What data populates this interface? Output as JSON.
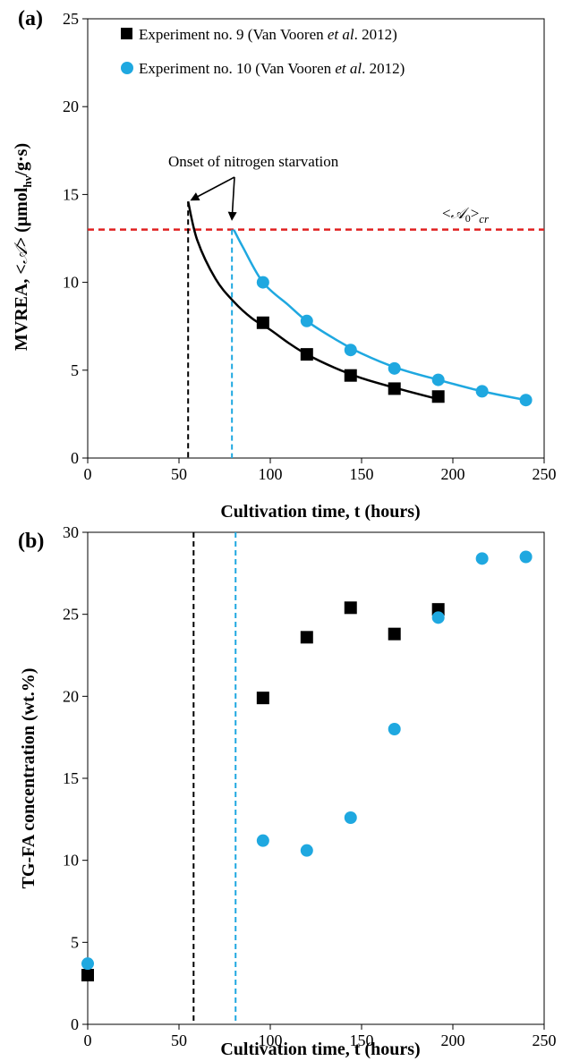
{
  "chart_data": [
    {
      "type": "scatter",
      "panel_label": "(a)",
      "xlabel": "Cultivation time, t (hours)",
      "ylabel_parts": [
        "MVREA, <",
        "𝒜",
        "> (μmol",
        "hν",
        "/g·s)"
      ],
      "xlim": [
        0,
        250
      ],
      "ylim": [
        0,
        25
      ],
      "xticks": [
        0,
        50,
        100,
        150,
        200,
        250
      ],
      "yticks": [
        0,
        5,
        10,
        15,
        20,
        25
      ],
      "grid": false,
      "legend_position": "top",
      "series": [
        {
          "name": "Experiment no. 9 (Van Vooren et al. 2012)",
          "name_parts": [
            "Experiment no. 9 (Van Vooren ",
            "et al",
            ". 2012)"
          ],
          "marker": "square",
          "color": "#000000",
          "x": [
            96,
            120,
            144,
            168,
            192
          ],
          "y": [
            7.7,
            5.9,
            4.7,
            3.95,
            3.5
          ],
          "fit_curve": {
            "x": [
              55,
              60,
              70,
              80,
              90,
              100,
              110,
              120,
              135,
              150,
              170,
              192
            ],
            "y": [
              14.6,
              12.4,
              10.2,
              8.9,
              7.95,
              7.3,
              6.55,
              5.9,
              5.15,
              4.55,
              3.95,
              3.35
            ]
          }
        },
        {
          "name": "Experiment no. 10 (Van Vooren et al. 2012)",
          "name_parts": [
            "Experiment no. 10  (Van Vooren ",
            "et al",
            ". 2012)"
          ],
          "marker": "circle",
          "color": "#1fa8e0",
          "x": [
            96,
            120,
            144,
            168,
            192,
            216,
            240
          ],
          "y": [
            10.0,
            7.8,
            6.15,
            5.1,
            4.45,
            3.8,
            3.3
          ],
          "fit_curve": {
            "x": [
              80,
              85,
              96,
              110,
              120,
              135,
              150,
              170,
              192,
              216,
              240
            ],
            "y": [
              13.0,
              12.0,
              10.0,
              8.7,
              7.8,
              6.8,
              5.95,
              5.1,
              4.45,
              3.8,
              3.3
            ]
          }
        }
      ],
      "reference_lines": [
        {
          "orientation": "horizontal",
          "y": 13.0,
          "color": "#e02020",
          "style": "dashed",
          "label_parts": [
            "<",
            "𝒜",
            "0",
            ">",
            "cr"
          ]
        },
        {
          "orientation": "vertical",
          "x": 55,
          "y_max": 14.6,
          "color": "#000000",
          "style": "dashed"
        },
        {
          "orientation": "vertical",
          "x": 79,
          "y_max": 13.0,
          "color": "#1fa8e0",
          "style": "dashed"
        }
      ],
      "annotation": {
        "text": "Onset of  nitrogen starvation",
        "arrow_targets": [
          {
            "x": 55,
            "y": 14.6
          },
          {
            "x": 79,
            "y": 13.6
          }
        ]
      }
    },
    {
      "type": "scatter",
      "panel_label": "(b)",
      "xlabel": "Cultivation time, t (hours)",
      "ylabel": "TG-FA concentration (wt.%)",
      "xlim": [
        0,
        250
      ],
      "ylim": [
        0,
        30
      ],
      "xticks": [
        0,
        50,
        100,
        150,
        200,
        250
      ],
      "yticks": [
        0,
        5,
        10,
        15,
        20,
        25,
        30
      ],
      "grid": false,
      "series": [
        {
          "marker": "square",
          "color": "#000000",
          "x": [
            0,
            96,
            120,
            144,
            168,
            192
          ],
          "y": [
            3.0,
            19.9,
            23.6,
            25.4,
            23.8,
            25.3
          ]
        },
        {
          "marker": "circle",
          "color": "#1fa8e0",
          "x": [
            0,
            96,
            120,
            144,
            168,
            192,
            216,
            240
          ],
          "y": [
            3.7,
            11.2,
            10.6,
            12.6,
            18.0,
            24.8,
            28.4,
            28.5
          ]
        }
      ],
      "reference_lines": [
        {
          "orientation": "vertical",
          "x": 58,
          "color": "#000000",
          "style": "dashed"
        },
        {
          "orientation": "vertical",
          "x": 81,
          "color": "#1fa8e0",
          "style": "dashed"
        }
      ]
    }
  ]
}
